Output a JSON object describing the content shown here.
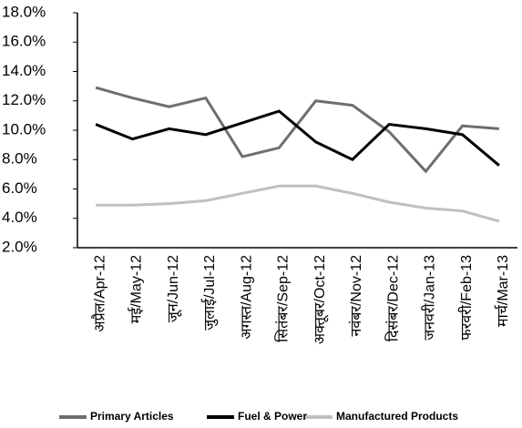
{
  "chart_data": {
    "type": "line",
    "categories": [
      "अप्रैल/Apr-12",
      "मई/May-12",
      "जून/Jun-12",
      "जुलाई/Jul-12",
      "अगस्त/Aug-12",
      "सितंबर/Sep-12",
      "अक्तूबर/Oct-12",
      "नवंबर/Nov-12",
      "दिसंबर/Dec-12",
      "जनवरी/Jan-13",
      "फरवरी/Feb-13",
      "मार्च/Mar-13"
    ],
    "series": [
      {
        "name": "Primary Articles",
        "color": "#6e6e6e",
        "values": [
          12.9,
          12.2,
          11.6,
          12.2,
          8.2,
          8.8,
          12.0,
          11.7,
          9.9,
          7.2,
          10.3,
          10.1
        ]
      },
      {
        "name": "Fuel & Power",
        "color": "#000000",
        "values": [
          10.4,
          9.4,
          10.1,
          9.7,
          10.5,
          11.3,
          9.2,
          8.0,
          10.4,
          10.1,
          9.7,
          7.6
        ]
      },
      {
        "name": "Manufactured Products",
        "color": "#c0c0c0",
        "values": [
          4.9,
          4.9,
          5.0,
          5.2,
          5.7,
          6.2,
          6.2,
          5.7,
          5.1,
          4.7,
          4.5,
          3.8
        ]
      }
    ],
    "ylim": [
      2,
      18
    ],
    "yticks": [
      {
        "value": 2,
        "label": "2.0%"
      },
      {
        "value": 4,
        "label": "4.0%"
      },
      {
        "value": 6,
        "label": "6.0%"
      },
      {
        "value": 8,
        "label": "8.0%"
      },
      {
        "value": 10,
        "label": "10.0%"
      },
      {
        "value": 12,
        "label": "12.0%"
      },
      {
        "value": 14,
        "label": "14.0%"
      },
      {
        "value": 16,
        "label": "16.0%"
      },
      {
        "value": 18,
        "label": "18.0%"
      }
    ],
    "grid": false,
    "legend": "bottom"
  }
}
